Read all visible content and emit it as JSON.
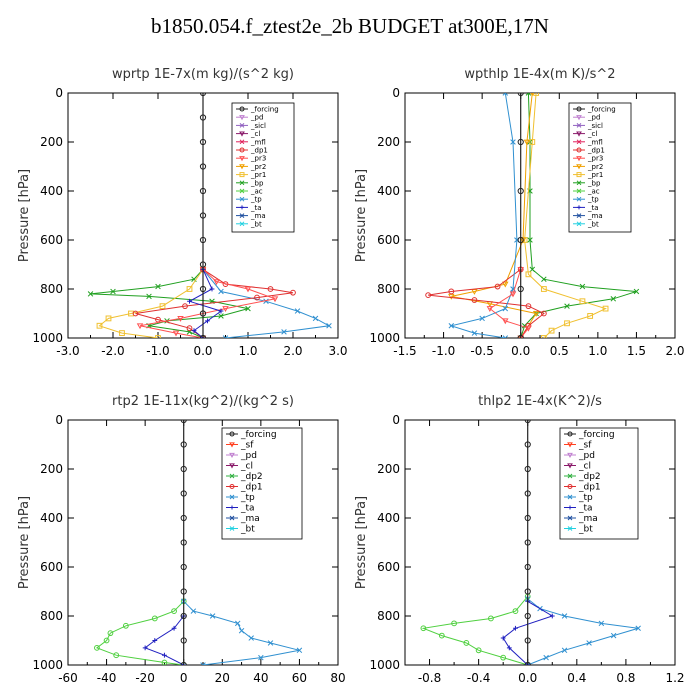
{
  "figure": {
    "title": "b1850.054.f_ztest2e_2b  BUDGET at300E,17N"
  },
  "colors": {
    "forcing": "#222222",
    "pd": "#c080d0",
    "sicl": "#9060c0",
    "cl": "#8a1a6a",
    "mfl": "#e0205a",
    "dp1": "#e03030",
    "pr3": "#ff5050",
    "pr2": "#f0a000",
    "pr1": "#f0c030",
    "bp": "#20a020",
    "ac": "#50d040",
    "tp": "#3090d0",
    "ta": "#2020c0",
    "ma": "#2050a0",
    "bt": "#20d0e0",
    "sf": "#ff4020",
    "dp2": "#30b040"
  },
  "chart_data": [
    {
      "type": "line",
      "title": "wprtp   1E-7x(m kg)/(s^2 kg)",
      "ylabel": "Pressure [hPa]",
      "xlim": [
        -3,
        3
      ],
      "ylim": [
        1000,
        0
      ],
      "xticks": [
        "-3.0",
        "-2.0",
        "-1.0",
        "0.0",
        "1.0",
        "2.0",
        "3.0"
      ],
      "yticks": [
        "0",
        "200",
        "400",
        "600",
        "800",
        "1000"
      ],
      "legend": [
        "_forcing",
        "_pd",
        "_sicl",
        "_cl",
        "_mfl",
        "_dp1",
        "_pr3",
        "_pr2",
        "_pr1",
        "_bp",
        "_ac",
        "_tp",
        "_ta",
        "_ma",
        "_bt"
      ],
      "series": [
        {
          "name": "_bp",
          "color": "bp",
          "marker": "x",
          "points": [
            [
              0,
              720
            ],
            [
              -0.2,
              760
            ],
            [
              -1.0,
              790
            ],
            [
              -2.0,
              810
            ],
            [
              -2.5,
              820
            ],
            [
              -1.2,
              830
            ],
            [
              0.2,
              850
            ],
            [
              1.0,
              880
            ],
            [
              0.4,
              910
            ],
            [
              -0.8,
              930
            ],
            [
              -1.2,
              950
            ],
            [
              -0.3,
              975
            ],
            [
              0,
              1000
            ]
          ]
        },
        {
          "name": "_pr1",
          "color": "pr1",
          "marker": "square",
          "points": [
            [
              0,
              720
            ],
            [
              -0.3,
              800
            ],
            [
              -0.9,
              870
            ],
            [
              -1.6,
              900
            ],
            [
              -2.1,
              920
            ],
            [
              -2.3,
              950
            ],
            [
              -1.8,
              980
            ],
            [
              -1.0,
              1000
            ]
          ]
        },
        {
          "name": "_tp",
          "color": "tp",
          "marker": "x",
          "points": [
            [
              0,
              720
            ],
            [
              0.4,
              810
            ],
            [
              1.4,
              850
            ],
            [
              2.1,
              890
            ],
            [
              2.5,
              920
            ],
            [
              2.8,
              950
            ],
            [
              1.8,
              975
            ],
            [
              0.5,
              1000
            ]
          ]
        },
        {
          "name": "_dp1",
          "color": "dp1",
          "marker": "circle",
          "points": [
            [
              0,
              720
            ],
            [
              0.5,
              780
            ],
            [
              1.5,
              800
            ],
            [
              2.0,
              815
            ],
            [
              1.2,
              835
            ],
            [
              -0.4,
              870
            ],
            [
              -1.5,
              900
            ],
            [
              -1.0,
              925
            ],
            [
              -0.3,
              960
            ],
            [
              0,
              1000
            ]
          ]
        },
        {
          "name": "_pr3",
          "color": "pr3",
          "marker": "tri",
          "points": [
            [
              0,
              720
            ],
            [
              0.3,
              770
            ],
            [
              1.0,
              800
            ],
            [
              1.6,
              840
            ],
            [
              0.5,
              880
            ],
            [
              -0.5,
              920
            ],
            [
              -1.4,
              950
            ],
            [
              -0.6,
              980
            ],
            [
              0,
              1000
            ]
          ]
        },
        {
          "name": "_ta",
          "color": "ta",
          "marker": "plus",
          "points": [
            [
              0,
              720
            ],
            [
              0.2,
              800
            ],
            [
              -0.3,
              850
            ],
            [
              0.4,
              890
            ],
            [
              0.1,
              930
            ],
            [
              -0.2,
              970
            ],
            [
              0,
              1000
            ]
          ]
        },
        {
          "name": "_forcing",
          "color": "forcing",
          "marker": "circle",
          "points": [
            [
              0,
              0
            ],
            [
              0,
              100
            ],
            [
              0,
              200
            ],
            [
              0,
              300
            ],
            [
              0,
              400
            ],
            [
              0,
              500
            ],
            [
              0,
              600
            ],
            [
              0,
              700
            ],
            [
              0,
              800
            ],
            [
              0,
              900
            ],
            [
              0,
              1000
            ]
          ]
        }
      ]
    },
    {
      "type": "line",
      "title": "wpthlp   1E-4x(m K)/s^2",
      "ylabel": "Pressure [hPa]",
      "xlim": [
        -1.5,
        2.0
      ],
      "ylim": [
        1000,
        0
      ],
      "xticks": [
        "-1.5",
        "-1.0",
        "-0.5",
        "0.0",
        "0.5",
        "1.0",
        "1.5",
        "2.0"
      ],
      "yticks": [
        "0",
        "200",
        "400",
        "600",
        "800",
        "1000"
      ],
      "legend": [
        "_forcing",
        "_pd",
        "_sicl",
        "_cl",
        "_mfl",
        "_dp1",
        "_pr3",
        "_pr2",
        "_pr1",
        "_bp",
        "_ac",
        "_tp",
        "_ta",
        "_ma",
        "_bt"
      ],
      "series": [
        {
          "name": "_bp",
          "color": "bp",
          "marker": "x",
          "points": [
            [
              0.1,
              0
            ],
            [
              0.12,
              200
            ],
            [
              0.12,
              400
            ],
            [
              0.12,
              600
            ],
            [
              0.15,
              720
            ],
            [
              0.3,
              760
            ],
            [
              0.8,
              790
            ],
            [
              1.5,
              810
            ],
            [
              1.2,
              840
            ],
            [
              0.6,
              870
            ],
            [
              0.2,
              900
            ],
            [
              0.05,
              950
            ],
            [
              0,
              1000
            ]
          ]
        },
        {
          "name": "_pr1",
          "color": "pr1",
          "marker": "square",
          "points": [
            [
              0.2,
              0
            ],
            [
              0.15,
              200
            ],
            [
              0.05,
              600
            ],
            [
              0.1,
              740
            ],
            [
              0.3,
              800
            ],
            [
              0.8,
              850
            ],
            [
              1.1,
              880
            ],
            [
              0.9,
              910
            ],
            [
              0.6,
              940
            ],
            [
              0.4,
              970
            ],
            [
              0.3,
              1000
            ]
          ]
        },
        {
          "name": "_pr2",
          "color": "pr2",
          "marker": "tri",
          "points": [
            [
              0.15,
              0
            ],
            [
              0.08,
              200
            ],
            [
              0.03,
              600
            ],
            [
              -0.2,
              780
            ],
            [
              -0.6,
              810
            ],
            [
              -0.9,
              830
            ],
            [
              -0.4,
              860
            ],
            [
              0.2,
              900
            ],
            [
              0,
              1000
            ]
          ]
        },
        {
          "name": "_dp1",
          "color": "dp1",
          "marker": "circle",
          "points": [
            [
              0,
              720
            ],
            [
              -0.3,
              790
            ],
            [
              -0.9,
              810
            ],
            [
              -1.2,
              825
            ],
            [
              -0.6,
              845
            ],
            [
              0.1,
              870
            ],
            [
              0.3,
              900
            ],
            [
              0.1,
              950
            ],
            [
              0,
              1000
            ]
          ]
        },
        {
          "name": "_tp",
          "color": "tp",
          "marker": "x",
          "points": [
            [
              -0.2,
              0
            ],
            [
              -0.1,
              200
            ],
            [
              -0.05,
              600
            ],
            [
              -0.1,
              800
            ],
            [
              -0.2,
              880
            ],
            [
              -0.5,
              920
            ],
            [
              -0.9,
              950
            ],
            [
              -0.6,
              980
            ],
            [
              -0.2,
              1000
            ]
          ]
        },
        {
          "name": "_pr3",
          "color": "pr3",
          "marker": "tri",
          "points": [
            [
              0,
              720
            ],
            [
              -0.1,
              820
            ],
            [
              -0.4,
              880
            ],
            [
              -0.2,
              930
            ],
            [
              0.1,
              960
            ],
            [
              0,
              1000
            ]
          ]
        },
        {
          "name": "_forcing",
          "color": "forcing",
          "marker": "circle",
          "points": [
            [
              0,
              0
            ],
            [
              0,
              200
            ],
            [
              0,
              400
            ],
            [
              0,
              600
            ],
            [
              0,
              800
            ],
            [
              0,
              1000
            ]
          ]
        }
      ]
    },
    {
      "type": "line",
      "title": "rtp2   1E-11x(kg^2)/(kg^2 s)",
      "ylabel": "Pressure [hPa]",
      "xlim": [
        -60,
        80
      ],
      "ylim": [
        1000,
        0
      ],
      "xticks": [
        "-60",
        "-40",
        "-20",
        "0",
        "20",
        "40",
        "60",
        "80"
      ],
      "yticks": [
        "0",
        "200",
        "400",
        "600",
        "800",
        "1000"
      ],
      "legend": [
        "_forcing",
        "_sf",
        "_pd",
        "_cl",
        "_dp2",
        "_dp1",
        "_tp",
        "_ta",
        "_ma",
        "_bt"
      ],
      "series": [
        {
          "name": "_dp1",
          "color": "ac",
          "marker": "circle",
          "points": [
            [
              0,
              740
            ],
            [
              -5,
              780
            ],
            [
              -15,
              810
            ],
            [
              -30,
              840
            ],
            [
              -38,
              870
            ],
            [
              -40,
              900
            ],
            [
              -45,
              930
            ],
            [
              -35,
              960
            ],
            [
              -10,
              990
            ],
            [
              0,
              1000
            ]
          ]
        },
        {
          "name": "_tp",
          "color": "tp",
          "marker": "x",
          "points": [
            [
              0,
              740
            ],
            [
              5,
              780
            ],
            [
              15,
              800
            ],
            [
              28,
              830
            ],
            [
              30,
              860
            ],
            [
              35,
              890
            ],
            [
              45,
              910
            ],
            [
              60,
              940
            ],
            [
              40,
              970
            ],
            [
              10,
              1000
            ]
          ]
        },
        {
          "name": "_ta",
          "color": "ta",
          "marker": "plus",
          "points": [
            [
              0,
              800
            ],
            [
              -5,
              850
            ],
            [
              -15,
              900
            ],
            [
              -20,
              930
            ],
            [
              -10,
              960
            ],
            [
              0,
              1000
            ]
          ]
        },
        {
          "name": "_forcing",
          "color": "forcing",
          "marker": "circle",
          "points": [
            [
              0,
              0
            ],
            [
              0,
              100
            ],
            [
              0,
              200
            ],
            [
              0,
              300
            ],
            [
              0,
              400
            ],
            [
              0,
              500
            ],
            [
              0,
              600
            ],
            [
              0,
              700
            ],
            [
              0,
              800
            ],
            [
              0,
              900
            ],
            [
              0,
              1000
            ]
          ]
        }
      ]
    },
    {
      "type": "line",
      "title": "thlp2   1E-4x(K^2)/s",
      "ylabel": "Pressure [hPa]",
      "xlim": [
        -1.0,
        1.2
      ],
      "ylim": [
        1000,
        0
      ],
      "xticks": [
        "-0.8",
        "-0.4",
        "0.0",
        "0.4",
        "0.8",
        "1.2"
      ],
      "yticks": [
        "0",
        "200",
        "400",
        "600",
        "800",
        "1000"
      ],
      "legend": [
        "_forcing",
        "_sf",
        "_pd",
        "_cl",
        "_dp2",
        "_dp1",
        "_tp",
        "_ta",
        "_ma",
        "_bt"
      ],
      "series": [
        {
          "name": "_dp1",
          "color": "ac",
          "marker": "circle",
          "points": [
            [
              0,
              720
            ],
            [
              -0.1,
              780
            ],
            [
              -0.3,
              810
            ],
            [
              -0.6,
              830
            ],
            [
              -0.85,
              850
            ],
            [
              -0.7,
              880
            ],
            [
              -0.5,
              910
            ],
            [
              -0.4,
              940
            ],
            [
              -0.2,
              970
            ],
            [
              0,
              1000
            ]
          ]
        },
        {
          "name": "_tp",
          "color": "tp",
          "marker": "x",
          "points": [
            [
              0,
              730
            ],
            [
              0.1,
              770
            ],
            [
              0.3,
              800
            ],
            [
              0.6,
              830
            ],
            [
              0.9,
              850
            ],
            [
              0.7,
              880
            ],
            [
              0.5,
              910
            ],
            [
              0.3,
              940
            ],
            [
              0.15,
              970
            ],
            [
              0,
              1000
            ]
          ]
        },
        {
          "name": "_ta",
          "color": "ta",
          "marker": "plus",
          "points": [
            [
              0,
              740
            ],
            [
              0.2,
              800
            ],
            [
              -0.1,
              850
            ],
            [
              -0.2,
              890
            ],
            [
              -0.15,
              930
            ],
            [
              0,
              1000
            ]
          ]
        },
        {
          "name": "_forcing",
          "color": "forcing",
          "marker": "circle",
          "points": [
            [
              0,
              0
            ],
            [
              0,
              100
            ],
            [
              0,
              200
            ],
            [
              0,
              300
            ],
            [
              0,
              400
            ],
            [
              0,
              500
            ],
            [
              0,
              600
            ],
            [
              0,
              700
            ],
            [
              0,
              800
            ],
            [
              0,
              900
            ],
            [
              0,
              1000
            ]
          ]
        }
      ]
    }
  ]
}
